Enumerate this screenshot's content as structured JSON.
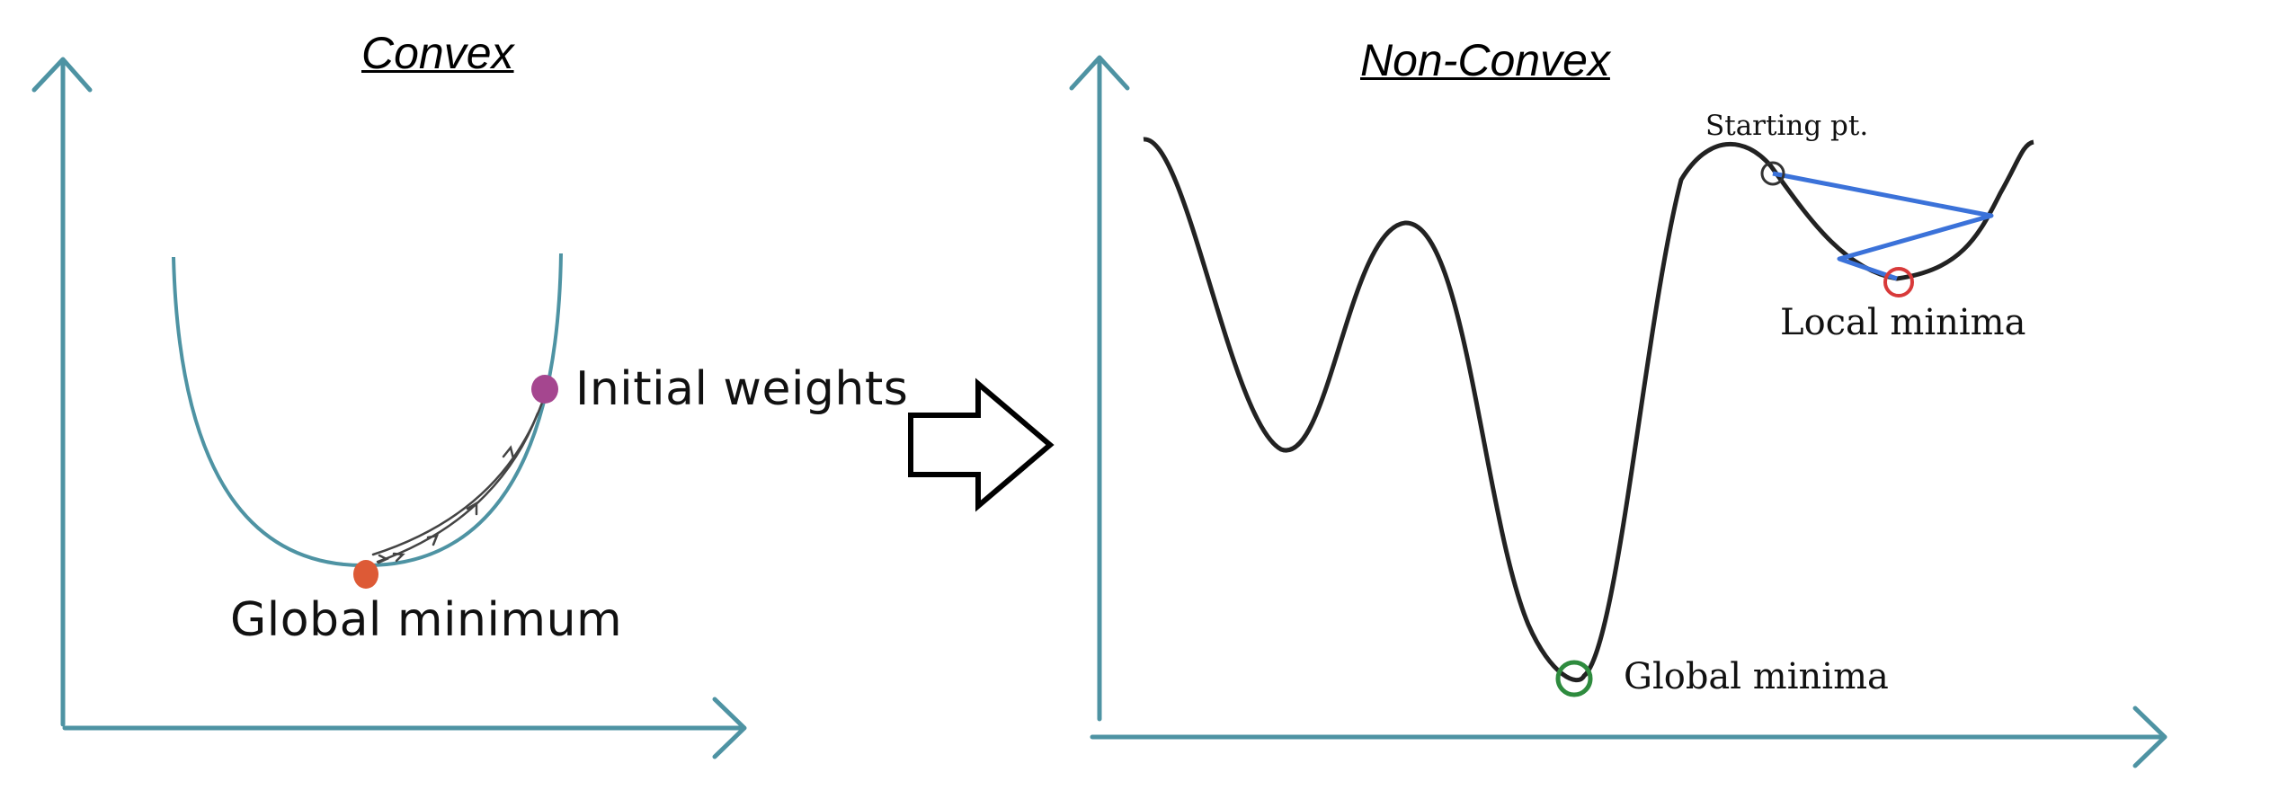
{
  "left_panel": {
    "title": "Convex",
    "initial_label": "Initial weights",
    "minimum_label": "Global minimum",
    "colors": {
      "axis": "#4e93a3",
      "curve": "#4e93a3",
      "initial_point": "#a5468f",
      "minimum_point": "#dd5a36"
    }
  },
  "right_panel": {
    "title": "Non-Convex",
    "start_label": "Starting pt.",
    "local_label": "Local minima",
    "global_label": "Global minima",
    "colors": {
      "axis": "#4e93a3",
      "curve": "#222222",
      "path": "#3b72d9",
      "local_circle": "#d83a3a",
      "global_circle": "#2e8b3e"
    }
  },
  "arrow": {
    "icon": "right-arrow-icon"
  }
}
